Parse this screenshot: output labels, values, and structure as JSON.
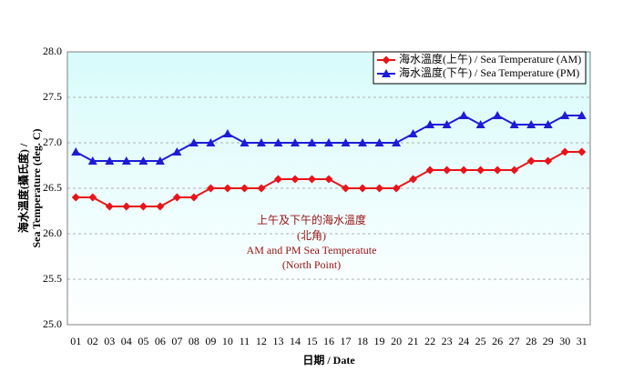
{
  "chart_data": {
    "type": "line",
    "y_label": [
      "海水溫度(攝氏度) /",
      "Sea Temperature (deg. C)"
    ],
    "x_label": "日期 / Date",
    "annotation": [
      "上午及下午的海水溫度",
      "(北角)",
      "AM and PM Sea Temperatute",
      "(North Point)"
    ],
    "categories": [
      "01",
      "02",
      "03",
      "04",
      "05",
      "06",
      "07",
      "08",
      "09",
      "10",
      "11",
      "12",
      "13",
      "14",
      "15",
      "16",
      "17",
      "18",
      "19",
      "20",
      "21",
      "22",
      "23",
      "24",
      "25",
      "26",
      "27",
      "28",
      "29",
      "30",
      "31"
    ],
    "series": [
      {
        "name": "海水溫度(上午) / Sea Temperature (AM)",
        "color": "#e8141a",
        "marker": "diamond",
        "values": [
          26.4,
          26.4,
          26.3,
          26.3,
          26.3,
          26.3,
          26.4,
          26.4,
          26.5,
          26.5,
          26.5,
          26.5,
          26.6,
          26.6,
          26.6,
          26.6,
          26.5,
          26.5,
          26.5,
          26.5,
          26.6,
          26.7,
          26.7,
          26.7,
          26.7,
          26.7,
          26.7,
          26.8,
          26.8,
          26.9,
          26.9
        ]
      },
      {
        "name": "海水溫度(下午) / Sea Temperature (PM)",
        "color": "#1c1cd8",
        "marker": "triangle",
        "values": [
          26.9,
          26.8,
          26.8,
          26.8,
          26.8,
          26.8,
          26.9,
          27.0,
          27.0,
          27.1,
          27.0,
          27.0,
          27.0,
          27.0,
          27.0,
          27.0,
          27.0,
          27.0,
          27.0,
          27.0,
          27.1,
          27.2,
          27.2,
          27.3,
          27.2,
          27.3,
          27.2,
          27.2,
          27.2,
          27.3,
          27.3
        ]
      }
    ],
    "ylim": [
      25,
      28
    ],
    "yticks": [
      {
        "value": 25,
        "label": "25.0"
      },
      25.5,
      {
        "value": 26,
        "label": "26.0"
      },
      26.5,
      {
        "value": 27,
        "label": "27.0"
      },
      27.5,
      {
        "value": 28,
        "label": "28.0"
      }
    ],
    "grid": true,
    "legend": "top-right"
  }
}
